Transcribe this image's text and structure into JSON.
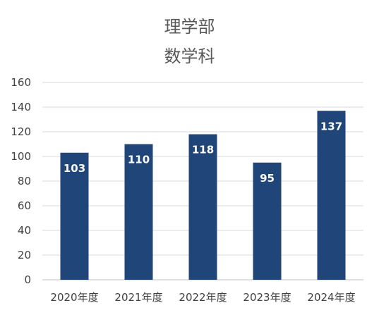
{
  "chart_data": {
    "type": "bar",
    "title_lines": [
      "理学部",
      "数学科"
    ],
    "categories": [
      "2020年度",
      "2021年度",
      "2022年度",
      "2023年度",
      "2024年度"
    ],
    "values": [
      103,
      110,
      118,
      95,
      137
    ],
    "ylim": [
      0,
      160
    ],
    "yticks": [
      0,
      20,
      40,
      60,
      80,
      100,
      120,
      140,
      160
    ],
    "grid": true,
    "data_labels": true,
    "bar_color": "#1F4579",
    "label_color": "#ffffff",
    "axis_text_color": "#404040",
    "grid_color": "#d9d9d9"
  }
}
